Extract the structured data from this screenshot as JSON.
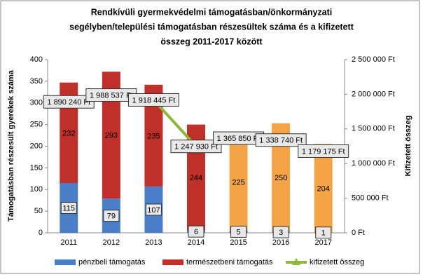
{
  "chart_data": {
    "type": "combo",
    "title": [
      "Rendkívüli gyermekvédelmi támogatásban/önkormányzati",
      "segélyben/települési támogatásban részesültek  száma és a kifizetett",
      "összeg 2011-2017 között"
    ],
    "y_label": "Támogatásban részesült gyerekek száma",
    "y2_label": "Kifizetett összeg",
    "categories": [
      "2011",
      "2012",
      "2013",
      "2014",
      "2015",
      "2016",
      "2017"
    ],
    "series": [
      {
        "name": "pénzbeli támogatás",
        "type": "bar",
        "color": "#4a7fc8",
        "values": [
          115,
          79,
          107,
          6,
          5,
          3,
          1
        ]
      },
      {
        "name": "természetbeni támogatás",
        "type": "bar",
        "color": "#c0302a",
        "colors": [
          "#c0302a",
          "#c0302a",
          "#c0302a",
          "#c0302a",
          "#f5a347",
          "#f5a347",
          "#f5a347"
        ],
        "values": [
          232,
          293,
          235,
          244,
          225,
          250,
          204
        ]
      },
      {
        "name": "kifizetett összeg",
        "type": "line",
        "axis": "y2",
        "color": "#8db83a",
        "values": [
          1890240,
          1988537,
          1918445,
          1247930,
          1365850,
          1338740,
          1179175
        ],
        "value_labels": [
          "1 890 240 Ft",
          "1 988 537 Ft",
          "1 918 445 Ft",
          "1 247 930 Ft",
          "1 365 850 Ft",
          "1 338 740 Ft",
          "1 179 175 Ft"
        ]
      }
    ],
    "ylim": [
      0,
      400
    ],
    "yticks": [
      0,
      50,
      100,
      150,
      200,
      250,
      300,
      350,
      400
    ],
    "y2lim": [
      0,
      2500000
    ],
    "y2ticks": [
      {
        "value": 0,
        "label": "0 Ft"
      },
      {
        "value": 500000,
        "label": "500 000 Ft"
      },
      {
        "value": 1000000,
        "label": "1 000 000 Ft"
      },
      {
        "value": 1500000,
        "label": "1 500 000 Ft"
      },
      {
        "value": 2000000,
        "label": "2 000 000 Ft"
      },
      {
        "value": 2500000,
        "label": "2 500 000 Ft"
      }
    ],
    "legend": "bottom"
  }
}
